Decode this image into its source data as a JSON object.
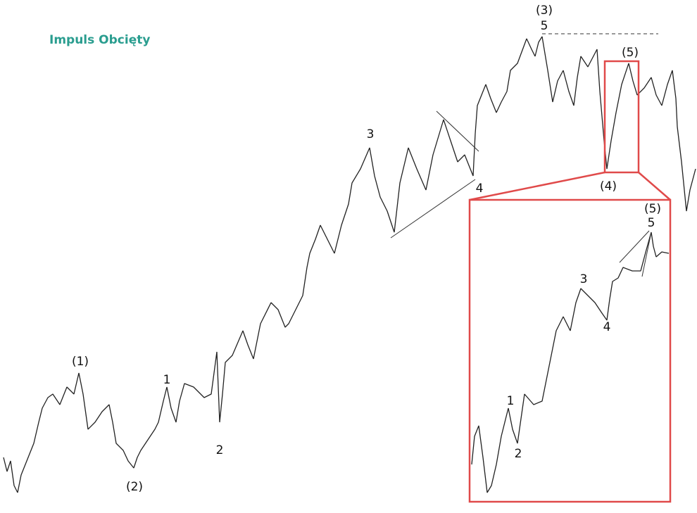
{
  "title": "Impuls Obcięty",
  "main_labels": [
    "(1)",
    "(2)",
    "1",
    "2",
    "3",
    "4",
    "(3)",
    "5",
    "(5)",
    "(4)"
  ],
  "inset_labels": [
    "(5)",
    "5",
    "3",
    "4",
    "1",
    "2"
  ]
}
